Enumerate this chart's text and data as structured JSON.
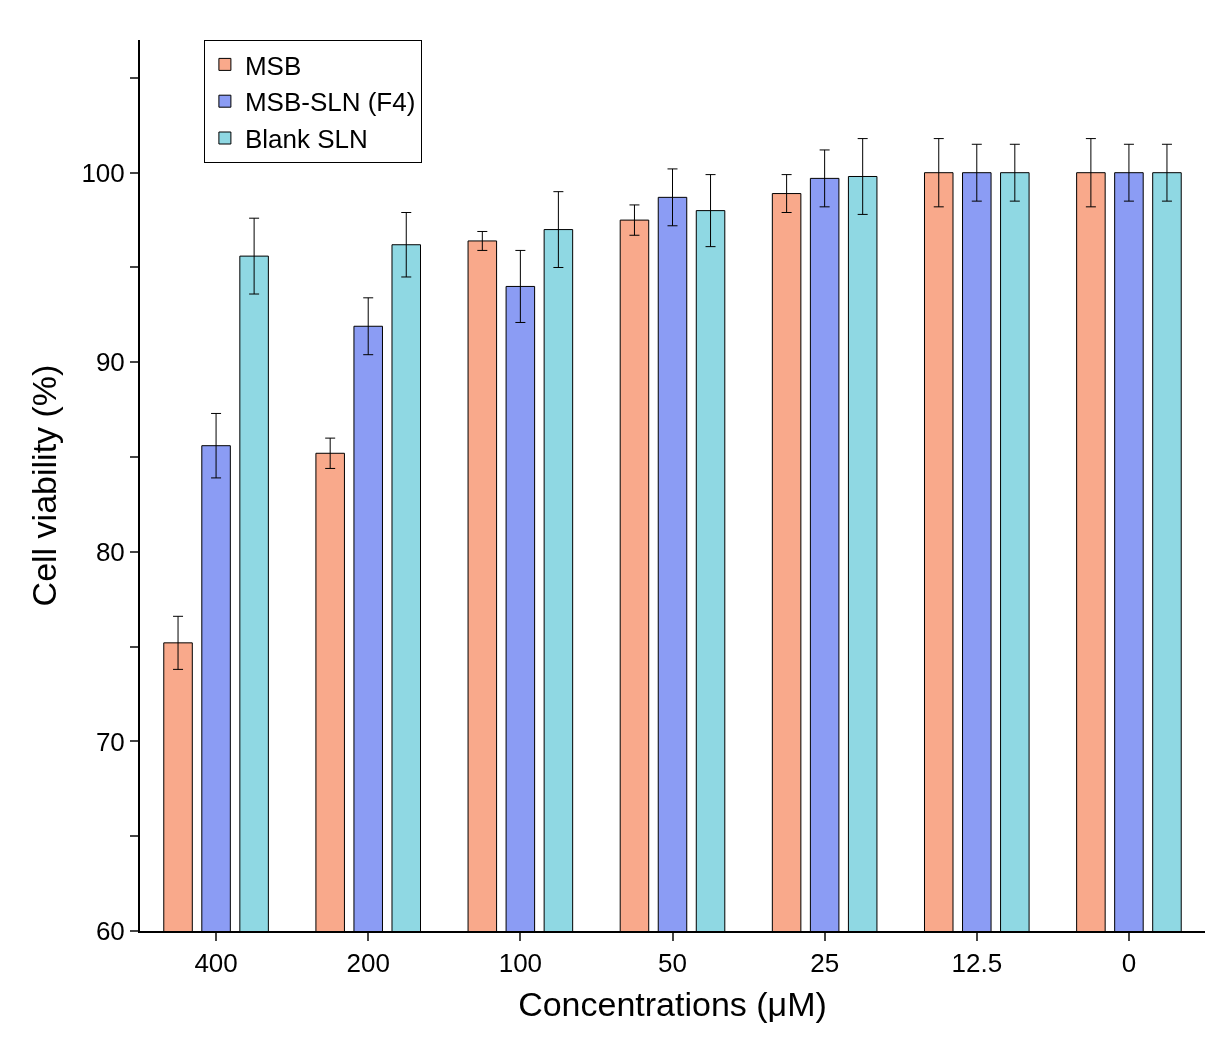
{
  "chart_data": {
    "type": "bar",
    "xlabel": "Concentrations (μM)",
    "ylabel": "Cell viability (%)",
    "categories": [
      "400",
      "200",
      "100",
      "50",
      "25",
      "12.5",
      "0"
    ],
    "series": [
      {
        "name": "MSB",
        "color": "#f9a98b",
        "values": [
          75.2,
          85.2,
          96.4,
          97.5,
          98.9,
          100,
          100
        ],
        "errors": [
          1.4,
          0.8,
          0.5,
          0.8,
          1.0,
          1.8,
          1.8
        ]
      },
      {
        "name": "MSB-SLN (F4)",
        "color": "#8b9cf4",
        "values": [
          85.6,
          91.9,
          94.0,
          98.7,
          99.7,
          100,
          100
        ],
        "errors": [
          1.7,
          1.5,
          1.9,
          1.5,
          1.5,
          1.5,
          1.5
        ]
      },
      {
        "name": "Blank SLN",
        "color": "#8fd8e3",
        "values": [
          95.6,
          96.2,
          97.0,
          98.0,
          99.8,
          100,
          100
        ],
        "errors": [
          2.0,
          1.7,
          2.0,
          1.9,
          2.0,
          1.5,
          1.5
        ]
      }
    ],
    "ylim": [
      60,
      107
    ],
    "yticks": [
      60,
      {
        "value": 65,
        "label": null
      },
      70,
      {
        "value": 75,
        "label": null
      },
      80,
      {
        "value": 85,
        "label": null
      },
      90,
      {
        "value": 95,
        "label": null
      },
      100,
      {
        "value": 105,
        "label": null
      }
    ],
    "legend": "top left"
  }
}
